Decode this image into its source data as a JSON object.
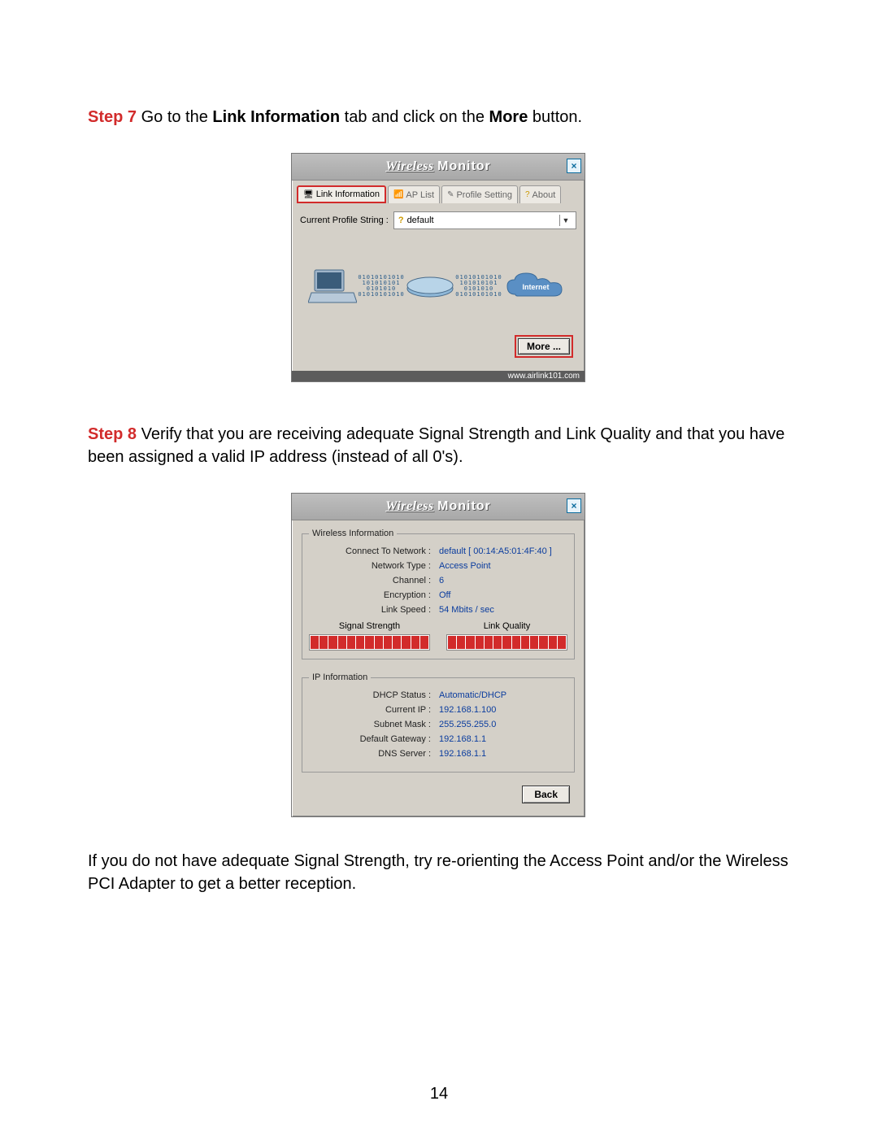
{
  "step7": {
    "label": "Step 7",
    "text_before": " Go to the ",
    "bold1": "Link Information",
    "text_mid": " tab and click on the ",
    "bold2": "More",
    "text_after": " button."
  },
  "window1": {
    "title_wireless": "Wireless",
    "title_monitor": "Monitor",
    "close": "×",
    "tabs": {
      "link_info": {
        "label": "Link Information",
        "icon": "🖥"
      },
      "ap_list": {
        "label": "AP List",
        "icon": "📶"
      },
      "profile": {
        "label": "Profile Setting",
        "icon": "✎"
      },
      "about": {
        "label": "About",
        "icon": "?"
      }
    },
    "profile_row": {
      "label": "Current Profile String :",
      "icon": "?",
      "value": "default"
    },
    "internet_label": "Internet",
    "more_button": "More ...",
    "footer": "www.airlink101.com"
  },
  "step8": {
    "label": "Step 8",
    "text": " Verify that you are receiving adequate Signal Strength and Link Quality and that you have been assigned a valid IP address (instead of all 0's)."
  },
  "window2": {
    "title_wireless": "Wireless",
    "title_monitor": "Monitor",
    "close": "×",
    "wireless_info_legend": "Wireless Information",
    "ip_info_legend": "IP Information",
    "wi": {
      "connect_label": "Connect To Network :",
      "connect_value": "default [ 00:14:A5:01:4F:40 ]",
      "type_label": "Network Type :",
      "type_value": "Access Point",
      "channel_label": "Channel :",
      "channel_value": "6",
      "enc_label": "Encryption :",
      "enc_value": "Off",
      "speed_label": "Link Speed :",
      "speed_value": "54 Mbits / sec"
    },
    "signal_title": "Signal Strength",
    "quality_title": "Link Quality",
    "signal_segments": 13,
    "quality_segments": 13,
    "bar_color": "#d22b2b",
    "ip": {
      "dhcp_label": "DHCP Status :",
      "dhcp_value": "Automatic/DHCP",
      "ip_label": "Current IP :",
      "ip_value": "192.168.1.100",
      "mask_label": "Subnet Mask :",
      "mask_value": "255.255.255.0",
      "gw_label": "Default Gateway :",
      "gw_value": "192.168.1.1",
      "dns_label": "DNS Server :",
      "dns_value": "192.168.1.1"
    },
    "back_button": "Back"
  },
  "footnote": "If you do not have adequate Signal Strength, try re-orienting the Access Point and/or the Wireless PCI Adapter to get a better reception.",
  "page_number": "14"
}
